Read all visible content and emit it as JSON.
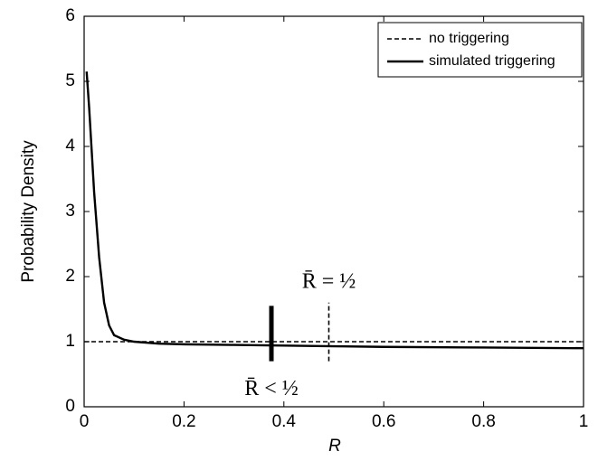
{
  "chart_data": {
    "type": "line",
    "xlabel": "R",
    "ylabel": "Probability Density",
    "xlim": [
      0,
      1
    ],
    "ylim": [
      0,
      6
    ],
    "xticks": [
      0,
      0.2,
      0.4,
      0.6,
      0.8,
      1
    ],
    "yticks": [
      0,
      1,
      2,
      3,
      4,
      5,
      6
    ],
    "legend": "upper right",
    "series": [
      {
        "name": "no triggering",
        "color": "#000000",
        "style": "dashed",
        "x": [
          0,
          1
        ],
        "values": [
          1,
          1
        ]
      },
      {
        "name": "simulated triggering",
        "color": "#000000",
        "style": "solid",
        "x": [
          0.005,
          0.01,
          0.02,
          0.03,
          0.04,
          0.05,
          0.06,
          0.08,
          0.1,
          0.15,
          0.2,
          0.3,
          0.4,
          0.5,
          0.6,
          0.8,
          1
        ],
        "values": [
          5.15,
          4.6,
          3.3,
          2.3,
          1.6,
          1.25,
          1.1,
          1.03,
          1.0,
          0.97,
          0.96,
          0.95,
          0.94,
          0.93,
          0.92,
          0.91,
          0.9
        ]
      }
    ],
    "reference_lines": [
      {
        "label": "R̄ < ½",
        "x": 0.375,
        "ymin": 0.7,
        "ymax": 1.55,
        "style": "solid",
        "label_position": "below"
      },
      {
        "label": "R̄ = ½",
        "x": 0.49,
        "ymin": 0.7,
        "ymax": 1.6,
        "style": "dashed",
        "label_position": "above"
      }
    ]
  }
}
